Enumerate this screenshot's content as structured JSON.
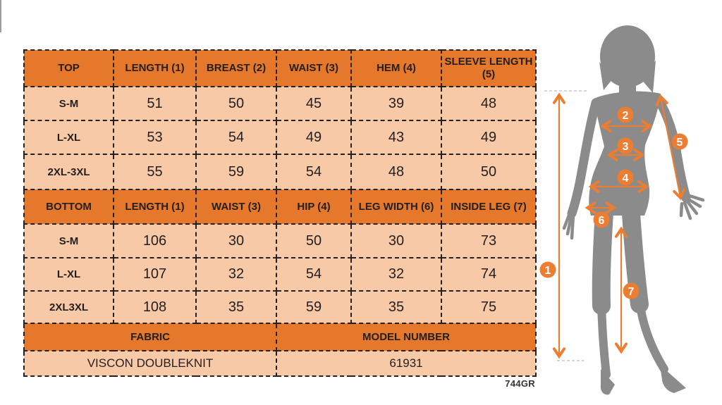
{
  "colors": {
    "header_orange": "#E5782A",
    "cell_peach": "#F7C9A7",
    "text_ink": "#231F20",
    "accent_orange": "#ED7D31",
    "figure_gray": "#8B8B8B",
    "guide_gray": "#C9C9C9"
  },
  "size_chart": {
    "top": {
      "headers": [
        "TOP",
        "LENGTH (1)",
        "BREAST (2)",
        "WAIST (3)",
        "HEM (4)",
        "SLEEVE LENGTH (5)"
      ],
      "rows": [
        {
          "size": "S-M",
          "values": [
            "51",
            "50",
            "45",
            "39",
            "48"
          ]
        },
        {
          "size": "L-XL",
          "values": [
            "53",
            "54",
            "49",
            "43",
            "49"
          ]
        },
        {
          "size": "2XL-3XL",
          "values": [
            "55",
            "59",
            "54",
            "48",
            "50"
          ]
        }
      ]
    },
    "bottom": {
      "headers": [
        "BOTTOM",
        "LENGTH (1)",
        "WAIST (3)",
        "HIP (4)",
        "LEG WIDTH (6)",
        "INSIDE LEG (7)"
      ],
      "rows": [
        {
          "size": "S-M",
          "values": [
            "106",
            "30",
            "50",
            "30",
            "73"
          ]
        },
        {
          "size": "L-XL",
          "values": [
            "107",
            "32",
            "54",
            "32",
            "74"
          ]
        },
        {
          "size": "2XL3XL",
          "values": [
            "108",
            "35",
            "59",
            "35",
            "75"
          ]
        }
      ]
    },
    "info": {
      "headers": [
        "FABRIC",
        "MODEL NUMBER"
      ],
      "values": [
        "VISCON DOUBLEKNIT",
        "61931"
      ]
    }
  },
  "footnote": "744GR",
  "diagram": {
    "markers": [
      "1",
      "2",
      "3",
      "4",
      "5",
      "6",
      "7"
    ]
  }
}
